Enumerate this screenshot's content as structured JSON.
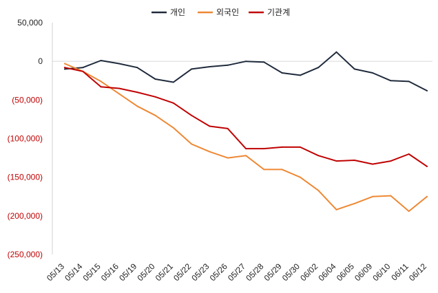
{
  "chart_data": {
    "type": "line",
    "title": "",
    "xlabel": "",
    "ylabel": "",
    "categories": [
      "05/13",
      "05/14",
      "05/15",
      "05/16",
      "05/19",
      "05/20",
      "05/21",
      "05/22",
      "05/23",
      "05/26",
      "05/27",
      "05/28",
      "05/29",
      "05/30",
      "06/02",
      "06/04",
      "06/05",
      "06/09",
      "06/10",
      "06/11",
      "06/12"
    ],
    "ylim": [
      -250000,
      50000
    ],
    "yticks": [
      50000,
      0,
      -50000,
      -100000,
      -150000,
      -200000,
      -250000
    ],
    "ytick_labels": [
      "50,000",
      "0",
      "(50,000)",
      "(100,000)",
      "(150,000)",
      "(200,000)",
      "(250,000)"
    ],
    "grid": false,
    "legend_position": "top-center",
    "series": [
      {
        "name": "개인",
        "color": "#1f2a3c",
        "values": [
          -10000,
          -8000,
          1000,
          -3000,
          -8000,
          -23000,
          -27000,
          -10000,
          -7000,
          -5000,
          0,
          -1000,
          -15000,
          -18000,
          -8000,
          12000,
          -10000,
          -15000,
          -25000,
          -26000,
          -38000
        ]
      },
      {
        "name": "외국인",
        "color": "#ee8833",
        "values": [
          -3000,
          -13000,
          -26000,
          -42000,
          -58000,
          -70000,
          -86000,
          -107000,
          -117000,
          -125000,
          -122000,
          -140000,
          -140000,
          -150000,
          -167000,
          -192000,
          -184000,
          -175000,
          -174000,
          -194000,
          -175000
        ]
      },
      {
        "name": "기관계",
        "color": "#c00000",
        "values": [
          -8000,
          -13000,
          -33000,
          -35000,
          -40000,
          -46000,
          -54000,
          -70000,
          -84000,
          -87000,
          -113000,
          -113000,
          -111000,
          -111000,
          -122000,
          -129000,
          -128000,
          -133000,
          -129000,
          -120000,
          -136000
        ]
      }
    ]
  }
}
